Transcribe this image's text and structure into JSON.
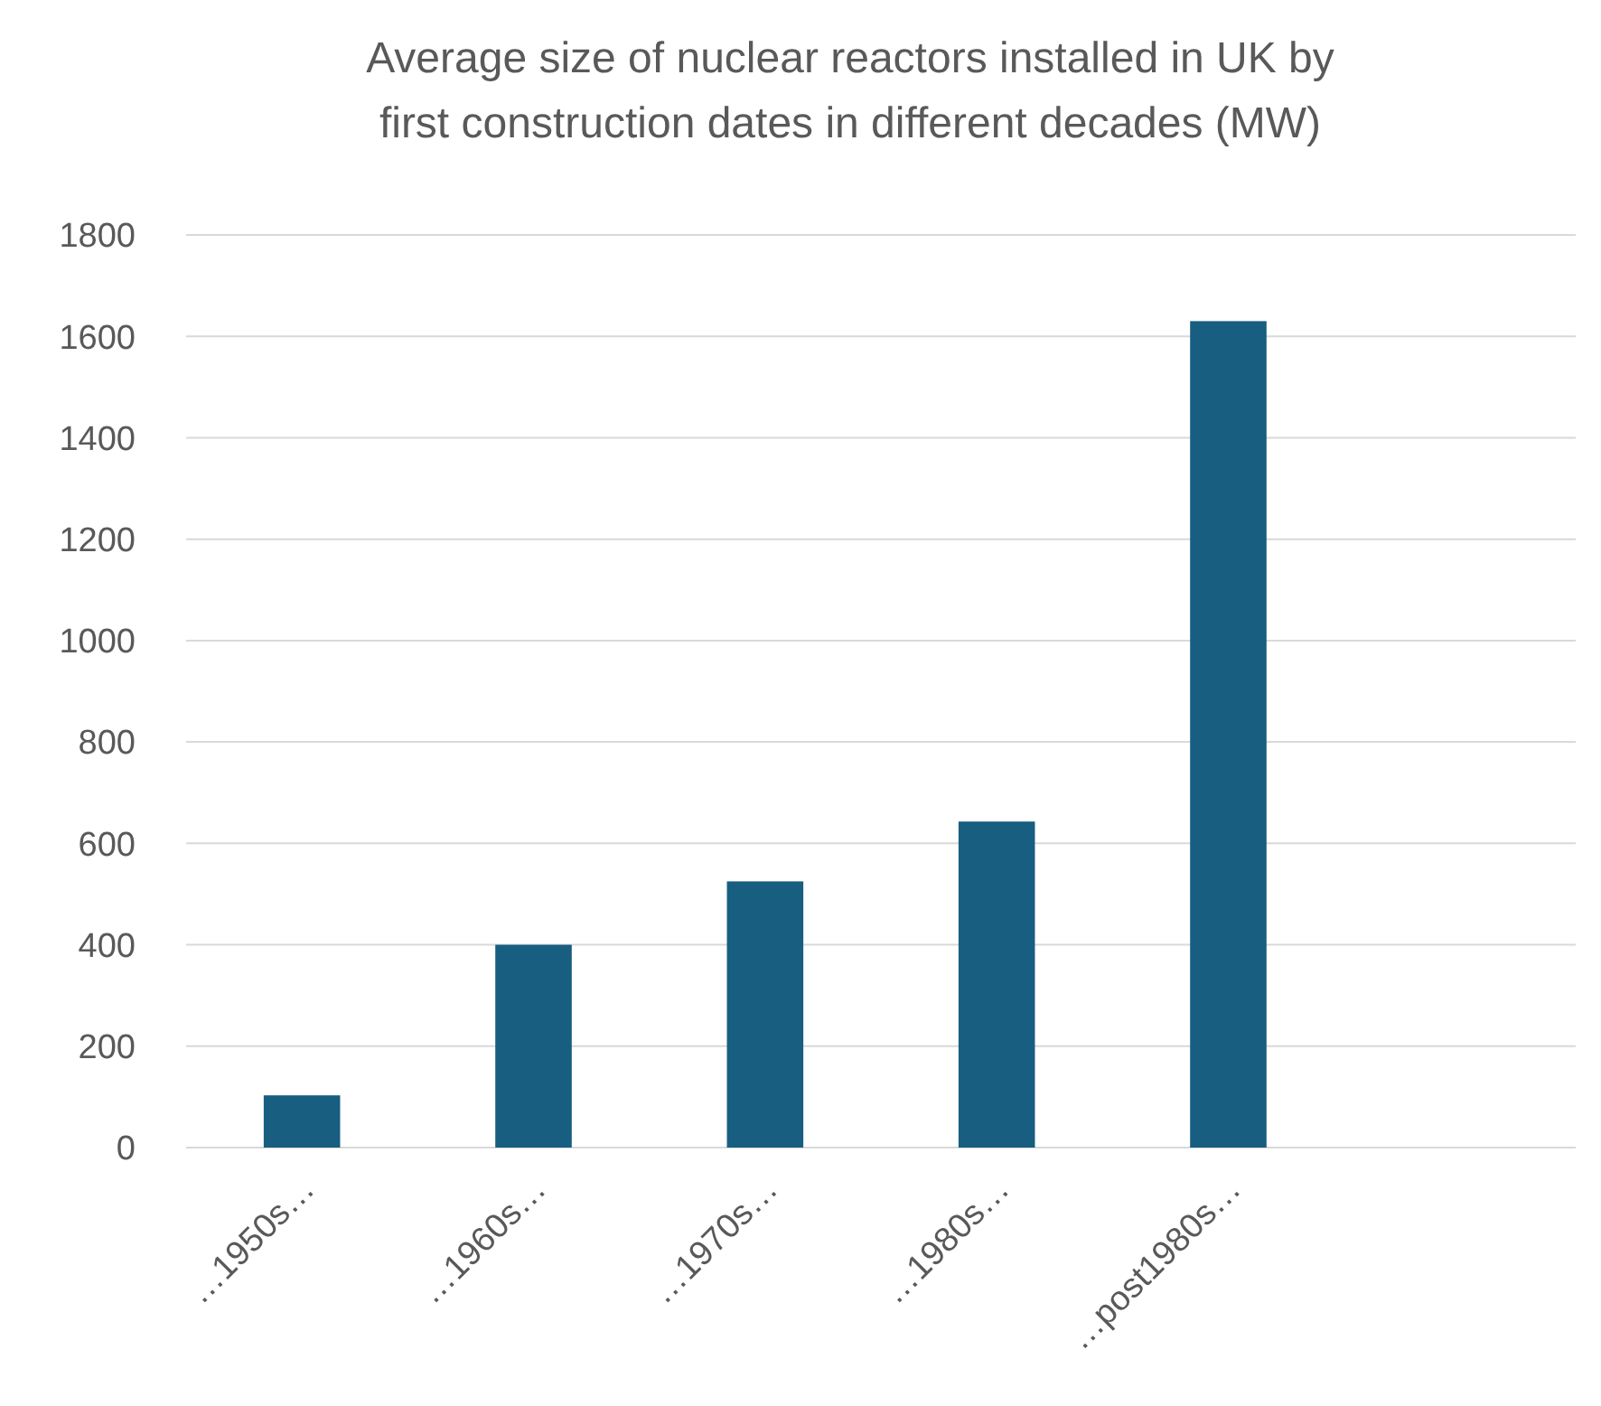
{
  "chart_data": {
    "type": "bar",
    "title": "Average size of nuclear reactors installed in UK by first construction dates in different decades (MW)",
    "categories": [
      "…1950s…",
      "…1960s…",
      "…1970s…",
      "…1980s…",
      "…post1980s…",
      null
    ],
    "values": [
      103,
      400,
      525,
      643,
      1630,
      null
    ],
    "color": "#175e80",
    "ylim": [
      0,
      1800
    ],
    "yticks": [
      0,
      200,
      400,
      600,
      800,
      1000,
      1200,
      1400,
      1600,
      1800
    ],
    "grid": "y"
  }
}
